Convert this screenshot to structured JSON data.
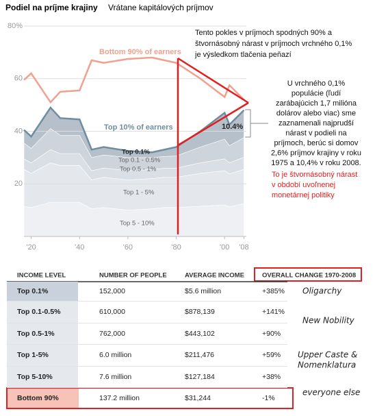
{
  "header": {
    "title": "Podiel na príjme krajiny",
    "subtitle": "Vrátane kapitálových príjmov"
  },
  "chart_data": {
    "type": "line",
    "x": [
      1917,
      1920,
      1928,
      1932,
      1940,
      1945,
      1950,
      1960,
      1970,
      1975,
      1980,
      1990,
      2000,
      2002,
      2008
    ],
    "xlim": [
      1917,
      2009
    ],
    "xticks": [
      {
        "value": 1920,
        "label": "'20"
      },
      {
        "value": 1940,
        "label": "'40"
      },
      {
        "value": 1960,
        "label": "'60"
      },
      {
        "value": 1980,
        "label": "'80"
      },
      {
        "value": 2000,
        "label": "'00"
      },
      {
        "value": 2008,
        "label": "'08"
      }
    ],
    "ylim": [
      0,
      80
    ],
    "yticks": [
      20,
      40,
      60,
      {
        "value": 80,
        "label": "80%"
      }
    ],
    "grid": true,
    "series": [
      {
        "name": "Bottom 90% of earners",
        "color": "#f0a08e",
        "values": [
          59.5,
          62,
          51,
          55,
          55.5,
          67,
          66,
          67.5,
          68,
          67,
          66,
          60,
          53,
          57.5,
          52
        ]
      },
      {
        "name": "Top 10% of earners",
        "color": "#6f8d9e",
        "values": [
          40.5,
          38,
          49,
          45,
          44.5,
          33,
          34,
          32.5,
          32,
          33,
          34,
          40,
          47,
          42.5,
          48
        ]
      }
    ],
    "stacked_areas": [
      {
        "name": "Top 5 - 10%",
        "color": "#eef0f3",
        "values": [
          11.5,
          11,
          13,
          13,
          13,
          10.5,
          11,
          10,
          10.5,
          11,
          11,
          11.5,
          12,
          11.3,
          12.5
        ]
      },
      {
        "name": "Top 1 - 5%",
        "color": "#e4e8ed",
        "values": [
          14,
          13,
          15,
          14,
          14,
          11,
          11.5,
          11.5,
          11.5,
          11.5,
          11.5,
          12.5,
          13,
          12.5,
          13
        ]
      },
      {
        "name": "Top 0.5 - 1%",
        "color": "#dadfe5",
        "values": [
          4,
          4,
          5,
          4.5,
          4.5,
          3.5,
          3.5,
          3.5,
          3.5,
          3.4,
          3.5,
          4,
          4.5,
          4.2,
          4.6
        ]
      },
      {
        "name": "Top 0.1 - 0.5%",
        "color": "#cdd4dc",
        "values": [
          6,
          5.5,
          8,
          7,
          7,
          5,
          5,
          5,
          4.5,
          4.5,
          4.6,
          6,
          7.5,
          6.5,
          7.5
        ]
      },
      {
        "name": "Top 0.1%",
        "color": "#b6c0cb",
        "values": [
          5,
          4.5,
          8,
          6.5,
          6,
          3,
          3,
          2.5,
          2,
          2.6,
          3.4,
          6,
          10,
          8,
          10.4
        ]
      }
    ],
    "annotations": [
      "10.4%"
    ]
  },
  "notes": {
    "decline": [
      "Tento pokles v príjmoch spodných 90% a",
      "štvornásobný nárast v príjmoch vrchného 0,1%",
      "je výsledkom tlačenia peňazí"
    ],
    "top": [
      "U vrchného 0,1%",
      "populácie (ľudí",
      "zarábajúcich 1,7 milióna",
      "dolárov alebo viac) sme",
      "zaznamenali najprudší",
      "nárast v podieli na",
      "príjmoch, berúc si domov",
      "2,6% príjmov krajiny v roku",
      "1975 a 10,4% v roku 2008."
    ],
    "red": [
      "To je štvornásobný nárast",
      "v období uvoľnenej",
      "monetárnej politiky"
    ]
  },
  "table": {
    "header": [
      "INCOME LEVEL",
      "NUMBER OF PEOPLE",
      "AVERAGE INCOME",
      "OVERALL CHANGE 1970-2008"
    ],
    "rows": [
      [
        "Top 0.1%",
        "152,000",
        "$5.6 million",
        "+385%"
      ],
      [
        "Top 0.1-0.5%",
        "610,000",
        "$878,139",
        "+141%"
      ],
      [
        "Top 0.5-1%",
        "762,000",
        "$443,102",
        "+90%"
      ],
      [
        "Top 1-5%",
        "6.0 million",
        "$211,476",
        "+59%"
      ],
      [
        "Top 5-10%",
        "7.6 million",
        "$127,184",
        "+38%"
      ],
      [
        "Bottom 90%",
        "137.2 million",
        "$31,244",
        "-1%"
      ]
    ],
    "notes": [
      [
        "Oligarchy"
      ],
      [
        "New Nobility"
      ],
      [
        "Upper Caste &",
        "Nomenklatura"
      ],
      [
        "everyone else"
      ]
    ]
  }
}
